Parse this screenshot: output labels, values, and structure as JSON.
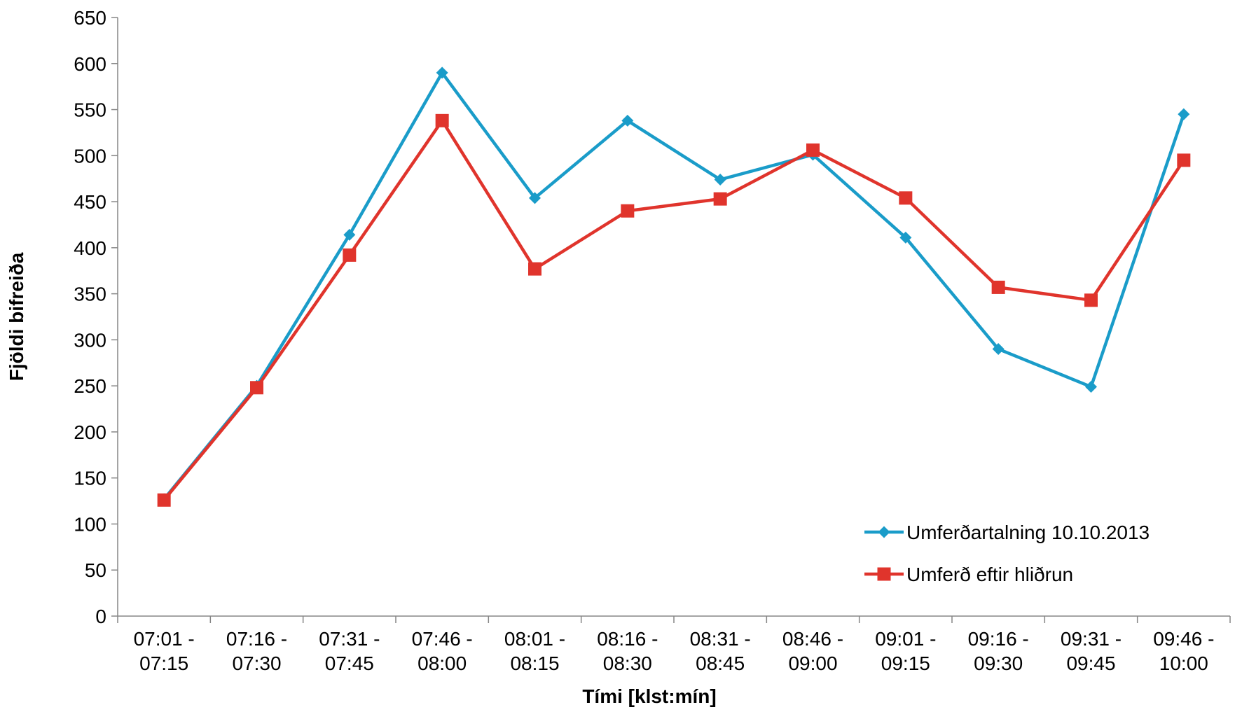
{
  "chart_data": {
    "type": "line",
    "title": "",
    "xlabel": "Tími [klst:mín]",
    "ylabel": "Fjöldi bifreiða",
    "ylim": [
      0,
      650
    ],
    "yticks": [
      "0",
      "50",
      "100",
      "150",
      "200",
      "250",
      "300",
      "350",
      "400",
      "450",
      "500",
      "550",
      "600",
      "650"
    ],
    "grid": false,
    "legend_position": "bottom-right",
    "categories": [
      [
        "07:01 -",
        "07:15"
      ],
      [
        "07:16 -",
        "07:30"
      ],
      [
        "07:31 -",
        "07:45"
      ],
      [
        "07:46 -",
        "08:00"
      ],
      [
        "08:01 -",
        "08:15"
      ],
      [
        "08:16 -",
        "08:30"
      ],
      [
        "08:31 -",
        "08:45"
      ],
      [
        "08:46 -",
        "09:00"
      ],
      [
        "09:01 -",
        "09:15"
      ],
      [
        "09:16 -",
        "09:30"
      ],
      [
        "09:31 -",
        "09:45"
      ],
      [
        "09:46 -",
        "10:00"
      ]
    ],
    "series": [
      {
        "name": "Umferðartalning 10.10.2013",
        "color": "#1A9CC9",
        "marker": "diamond",
        "values": [
          127,
          250,
          414,
          590,
          454,
          538,
          474,
          501,
          411,
          290,
          249,
          545
        ]
      },
      {
        "name": "Umferð eftir hliðrun",
        "color": "#E0342C",
        "marker": "square",
        "values": [
          126,
          248,
          392,
          538,
          377,
          440,
          453,
          506,
          454,
          357,
          343,
          495
        ]
      }
    ]
  }
}
